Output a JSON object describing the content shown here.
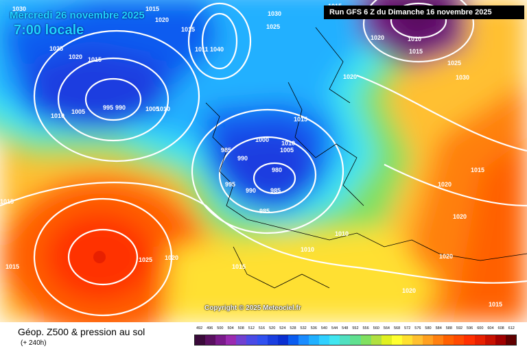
{
  "header": {
    "date": "Mercredi 26 novembre 2025",
    "time": "7:00 locale",
    "run": "Run GFS 6 Z du Dimanche 16 novembre 2025"
  },
  "map": {
    "copyright": "Copyright © 2025 Meteociel.fr",
    "isobar_labels": [
      "1030",
      "1015",
      "1020",
      "1025",
      "1015",
      "1020",
      "1015",
      "1011",
      "1040",
      "1030",
      "1025",
      "1005",
      "1015",
      "1020",
      "1010",
      "1015",
      "1010",
      "1025",
      "1020",
      "995",
      "990",
      "1005",
      "1010",
      "1030",
      "1015",
      "1000",
      "1010",
      "1005",
      "985",
      "990",
      "980",
      "995",
      "990",
      "985",
      "985",
      "1020",
      "1015",
      "1015",
      "1020",
      "1020",
      "1010",
      "1025",
      "1020",
      "1015",
      "1010",
      "1015",
      "1020",
      "1015"
    ],
    "colors": {
      "trough": "#0a2fd1",
      "ridge": "#ff5a00",
      "isobar": "#ffffff"
    }
  },
  "footer": {
    "title": "Géop. Z500 & pression au sol",
    "subtitle": "(+ 240h)"
  },
  "legend": {
    "ticks": [
      "492",
      "496",
      "500",
      "504",
      "508",
      "512",
      "516",
      "520",
      "524",
      "528",
      "532",
      "536",
      "540",
      "544",
      "548",
      "552",
      "556",
      "560",
      "564",
      "568",
      "572",
      "576",
      "580",
      "584",
      "588",
      "592",
      "596",
      "600",
      "604",
      "608",
      "612"
    ],
    "colors": [
      "#3a0a3a",
      "#5a1060",
      "#7a1a8a",
      "#9a2ab0",
      "#7040d0",
      "#4a4ae6",
      "#3050f0",
      "#1a3ee0",
      "#0a2fd1",
      "#0a5cf0",
      "#1a8cff",
      "#20b0ff",
      "#30d0ff",
      "#40e6f0",
      "#50e0c0",
      "#60e090",
      "#80e060",
      "#b0e040",
      "#e0f020",
      "#ffff30",
      "#ffe030",
      "#ffc030",
      "#ffa020",
      "#ff8010",
      "#ff6000",
      "#ff4a00",
      "#ff3000",
      "#e82000",
      "#c81000",
      "#a00000",
      "#600000"
    ]
  }
}
